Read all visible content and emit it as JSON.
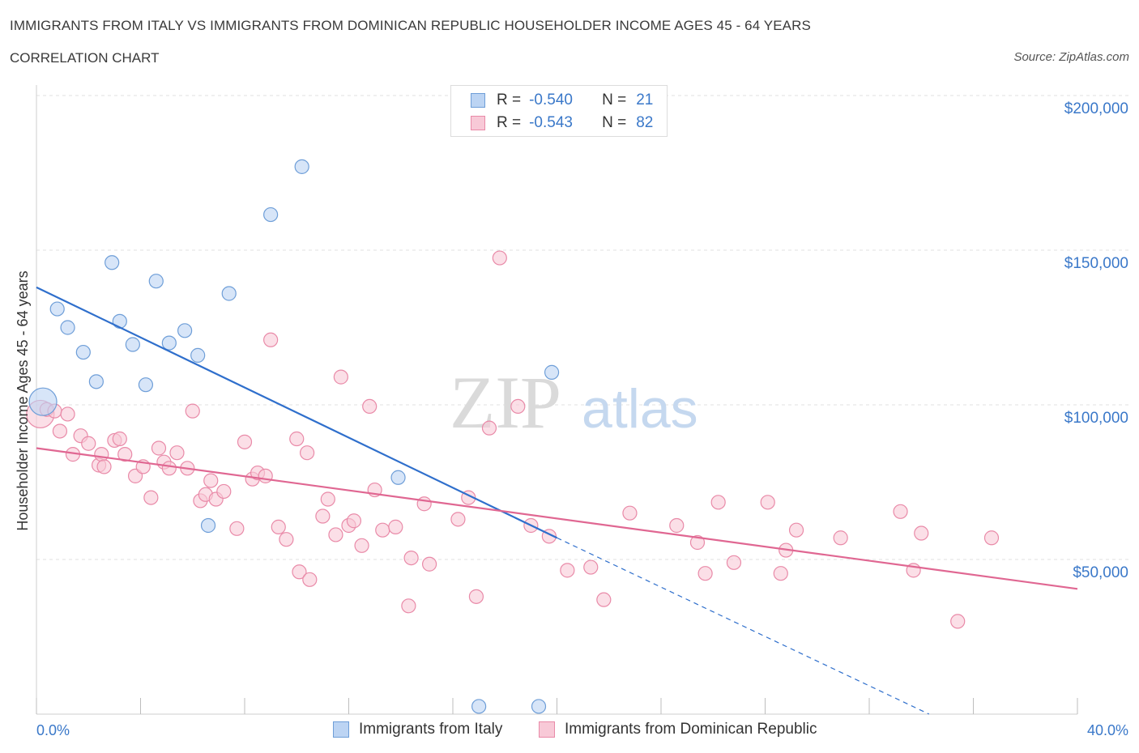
{
  "header": {
    "title": "IMMIGRANTS FROM ITALY VS IMMIGRANTS FROM DOMINICAN REPUBLIC HOUSEHOLDER INCOME AGES 45 - 64 YEARS",
    "subtitle": "CORRELATION CHART",
    "source": "Source: ZipAtlas.com"
  },
  "colors": {
    "italy_fill": "#bcd4f3",
    "italy_stroke": "#6e9ed8",
    "italy_line": "#2f6fcc",
    "dr_fill": "#f8c9d7",
    "dr_stroke": "#e98aa8",
    "dr_line": "#e06792",
    "axis_label": "#3a78c9",
    "grid": "#e2e2e2"
  },
  "legend": {
    "rows": [
      {
        "r_label": "R =",
        "r_value": "-0.540",
        "n_label": "N =",
        "n_value": "21"
      },
      {
        "r_label": "R =",
        "r_value": "-0.543",
        "n_label": "N =",
        "n_value": "82"
      }
    ]
  },
  "bottom_legend": {
    "italy": "Immigrants from Italy",
    "dr": "Immigrants from Dominican Republic"
  },
  "watermark": {
    "zip": "ZIP",
    "atlas": "atlas"
  },
  "chart_data": {
    "type": "scatter",
    "title": "IMMIGRANTS FROM ITALY VS IMMIGRANTS FROM DOMINICAN REPUBLIC HOUSEHOLDER INCOME AGES 45 - 64 YEARS",
    "xlabel": "",
    "ylabel": "Householder Income Ages 45 - 64 years",
    "xlim": [
      0,
      40
    ],
    "ylim": [
      0,
      200000
    ],
    "x_tick_labels": [
      "0.0%",
      "40.0%"
    ],
    "y_ticks": [
      {
        "value": 200000,
        "label": "$200,000"
      },
      {
        "value": 150000,
        "label": "$150,000"
      },
      {
        "value": 100000,
        "label": "$100,000"
      },
      {
        "value": 50000,
        "label": "$50,000"
      }
    ],
    "grid": true,
    "series": [
      {
        "name": "Immigrants from Italy",
        "points": [
          [
            0.25,
            101000,
            "large"
          ],
          [
            0.8,
            131000
          ],
          [
            1.2,
            125000
          ],
          [
            1.8,
            117000
          ],
          [
            2.3,
            107500
          ],
          [
            2.9,
            146000
          ],
          [
            3.2,
            127000
          ],
          [
            3.7,
            119500
          ],
          [
            4.2,
            106500
          ],
          [
            4.6,
            140000
          ],
          [
            5.1,
            120000
          ],
          [
            5.7,
            124000
          ],
          [
            6.2,
            116000
          ],
          [
            6.6,
            61000
          ],
          [
            7.4,
            136000
          ],
          [
            9.0,
            161500
          ],
          [
            10.2,
            177000
          ],
          [
            13.9,
            76500
          ],
          [
            19.8,
            110500
          ],
          [
            17.0,
            2500
          ],
          [
            19.3,
            2500
          ]
        ],
        "trend": {
          "x0": 0,
          "y0": 138000,
          "x1": 20.0,
          "y1": 57000,
          "dash_to_x": 34.3,
          "dash_to_y": 0
        }
      },
      {
        "name": "Immigrants from Dominican Republic",
        "points": [
          [
            0.15,
            97000,
            "large"
          ],
          [
            0.4,
            98500
          ],
          [
            0.7,
            98000
          ],
          [
            1.2,
            97000
          ],
          [
            0.9,
            91500
          ],
          [
            1.4,
            84000
          ],
          [
            1.7,
            90000
          ],
          [
            2.0,
            87500
          ],
          [
            2.4,
            80500
          ],
          [
            2.5,
            84000
          ],
          [
            2.6,
            80000
          ],
          [
            3.0,
            88500
          ],
          [
            3.2,
            89000
          ],
          [
            3.4,
            84000
          ],
          [
            3.8,
            77000
          ],
          [
            4.1,
            80000
          ],
          [
            4.4,
            70000
          ],
          [
            4.7,
            86000
          ],
          [
            4.9,
            81500
          ],
          [
            5.1,
            79500
          ],
          [
            5.4,
            84500
          ],
          [
            5.8,
            79500
          ],
          [
            6.0,
            98000
          ],
          [
            6.3,
            69000
          ],
          [
            6.5,
            71000
          ],
          [
            6.7,
            75500
          ],
          [
            6.9,
            69500
          ],
          [
            7.2,
            72000
          ],
          [
            7.7,
            60000
          ],
          [
            8.0,
            88000
          ],
          [
            8.3,
            76000
          ],
          [
            8.5,
            78000
          ],
          [
            8.8,
            77000
          ],
          [
            9.0,
            121000
          ],
          [
            9.3,
            60500
          ],
          [
            9.6,
            56500
          ],
          [
            10.0,
            89000
          ],
          [
            10.1,
            46000
          ],
          [
            10.4,
            84500
          ],
          [
            10.5,
            43500
          ],
          [
            11.0,
            64000
          ],
          [
            11.2,
            69500
          ],
          [
            11.5,
            58000
          ],
          [
            11.7,
            109000
          ],
          [
            12.0,
            61000
          ],
          [
            12.2,
            62500
          ],
          [
            12.5,
            54500
          ],
          [
            12.8,
            99500
          ],
          [
            13.0,
            72500
          ],
          [
            13.3,
            59500
          ],
          [
            13.8,
            60500
          ],
          [
            14.3,
            35000
          ],
          [
            14.4,
            50500
          ],
          [
            14.9,
            68000
          ],
          [
            15.1,
            48500
          ],
          [
            16.2,
            63000
          ],
          [
            16.6,
            70000
          ],
          [
            16.9,
            38000
          ],
          [
            17.8,
            147500
          ],
          [
            17.4,
            92500
          ],
          [
            18.5,
            99500
          ],
          [
            19.0,
            61000
          ],
          [
            19.7,
            57500
          ],
          [
            20.4,
            46500
          ],
          [
            21.3,
            47500
          ],
          [
            21.8,
            37000
          ],
          [
            22.8,
            65000
          ],
          [
            24.6,
            61000
          ],
          [
            25.4,
            55500
          ],
          [
            25.7,
            45500
          ],
          [
            26.2,
            68500
          ],
          [
            26.8,
            49000
          ],
          [
            28.1,
            68500
          ],
          [
            28.6,
            45500
          ],
          [
            28.8,
            53000
          ],
          [
            29.2,
            59500
          ],
          [
            30.9,
            57000
          ],
          [
            33.2,
            65500
          ],
          [
            33.7,
            46500
          ],
          [
            34.0,
            58500
          ],
          [
            35.4,
            30000
          ],
          [
            36.7,
            57000
          ]
        ],
        "trend": {
          "x0": 0,
          "y0": 86000,
          "x1": 40.0,
          "y1": 40500
        }
      }
    ]
  }
}
